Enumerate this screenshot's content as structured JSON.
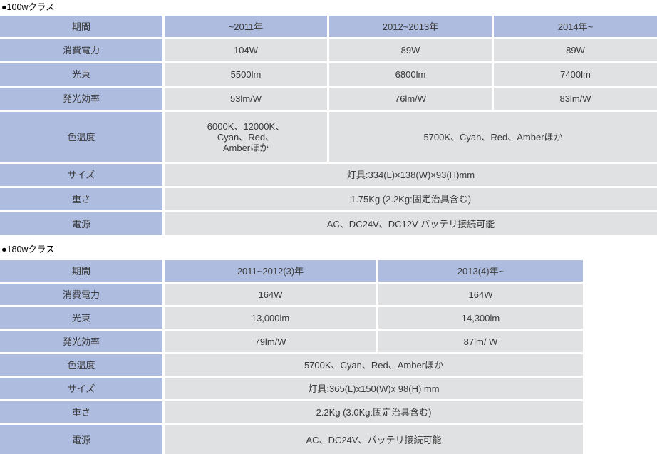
{
  "colors": {
    "header_blue": "#aebcdf",
    "cell_gray": "#e0e1e3",
    "text": "#3a3a3a"
  },
  "t1": {
    "title": "●100wクラス",
    "header": {
      "label": "期間",
      "cols": [
        "~2011年",
        "2012~2013年",
        "2014年~"
      ]
    },
    "rows": {
      "power": {
        "label": "消費電力",
        "cells": [
          "104W",
          "89W",
          "89W"
        ]
      },
      "flux": {
        "label": "光束",
        "cells": [
          "5500lm",
          "6800lm",
          "7400lm"
        ]
      },
      "efficacy": {
        "label": "発光効率",
        "cells": [
          "53lm/W",
          "76lm/W",
          "83lm/W"
        ]
      },
      "color_temp": {
        "label": "色温度",
        "first_lines": [
          "6000K、12000K、",
          "Cyan、Red、",
          "Amberほか"
        ],
        "merged": "5700K、Cyan、Red、Amberほか"
      },
      "size": {
        "label": "サイズ",
        "merged": "灯具:334(L)×138(W)×93(H)mm"
      },
      "weight": {
        "label": "重さ",
        "merged": "1.75Kg (2.2Kg:固定治具含む)"
      },
      "supply": {
        "label": "電源",
        "merged": "AC、DC24V、DC12V バッテリ接続可能"
      }
    }
  },
  "t2": {
    "title": "●180wクラス",
    "header": {
      "label": "期間",
      "cols": [
        "2011~2012(3)年",
        "2013(4)年~"
      ]
    },
    "rows": {
      "power": {
        "label": "消費電力",
        "cells": [
          "164W",
          "164W"
        ]
      },
      "flux": {
        "label": "光束",
        "cells": [
          "13,000lm",
          "14,300lm"
        ]
      },
      "efficacy": {
        "label": "発光効率",
        "cells": [
          "79lm/W",
          "87lm/ W"
        ]
      },
      "color_temp": {
        "label": "色温度",
        "merged": "5700K、Cyan、Red、Amberほか"
      },
      "size": {
        "label": "サイズ",
        "merged": "灯具:365(L)x150(W)x 98(H) mm"
      },
      "weight": {
        "label": "重さ",
        "merged": "2.2Kg (3.0Kg:固定治具含む)"
      },
      "supply": {
        "label": "電源",
        "merged": "AC、DC24V、バッテリ接続可能"
      }
    }
  }
}
